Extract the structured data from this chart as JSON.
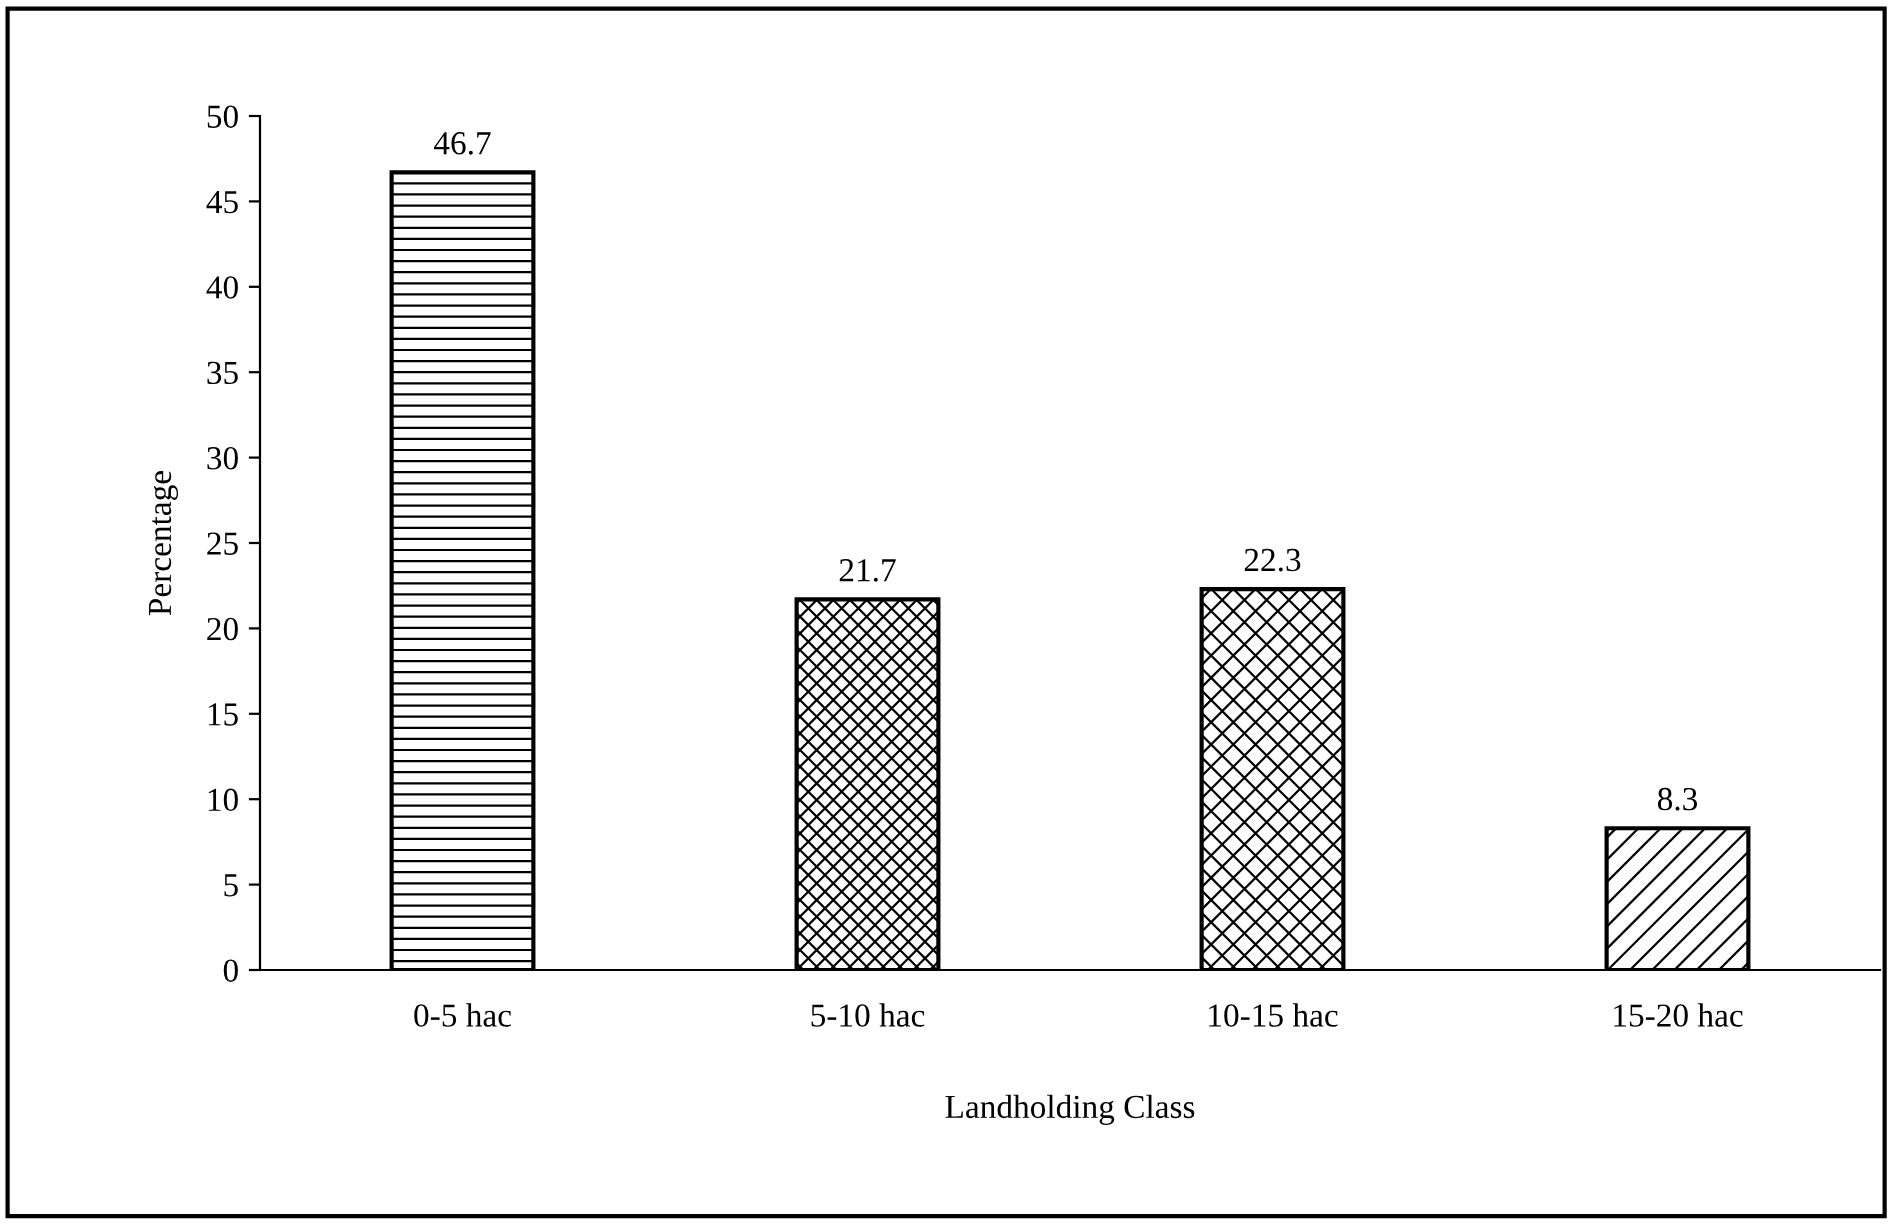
{
  "chart_data": {
    "type": "bar",
    "xlabel": "Landholding Class",
    "ylabel": "Percentage",
    "categories": [
      "0-5 hac",
      "5-10 hac",
      "10-15 hac",
      "15-20 hac"
    ],
    "values": [
      46.7,
      21.7,
      22.3,
      8.3
    ],
    "ylim": [
      0,
      50
    ],
    "yticks": [
      0,
      5,
      10,
      15,
      20,
      25,
      30,
      35,
      40,
      45,
      50
    ],
    "data_labels": true,
    "grid": false,
    "legend": false
  }
}
